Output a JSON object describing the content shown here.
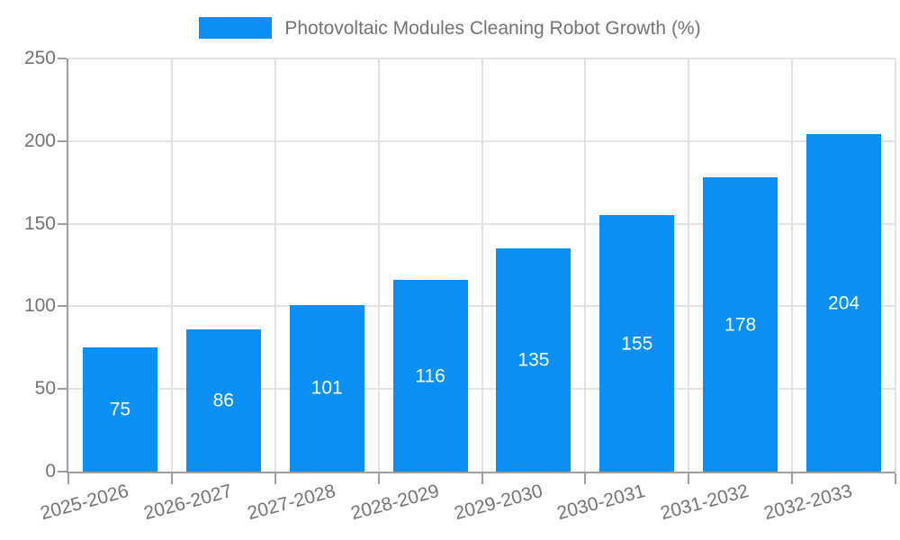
{
  "legend": {
    "label": "Photovoltaic Modules Cleaning Robot Growth (%)"
  },
  "chart_data": {
    "type": "bar",
    "title": "Photovoltaic Modules Cleaning Robot Growth (%)",
    "categories": [
      "2025-2026",
      "2026-2027",
      "2027-2028",
      "2028-2029",
      "2029-2030",
      "2030-2031",
      "2031-2032",
      "2032-2033"
    ],
    "values": [
      75,
      86,
      101,
      116,
      135,
      155,
      178,
      204
    ],
    "xlabel": "",
    "ylabel": "",
    "ylim": [
      0,
      250
    ],
    "yticks": [
      0,
      50,
      100,
      150,
      200,
      250
    ],
    "grid": true,
    "legend_position": "top",
    "value_labels": "inside-center",
    "x_label_rotation_deg": -15
  },
  "colors": {
    "bar": "#0a90f5",
    "grid": "#e3e3e3",
    "axis": "#9e9e9e",
    "text": "#737373",
    "value_label": "#ffffff",
    "background": "#ffffff"
  }
}
